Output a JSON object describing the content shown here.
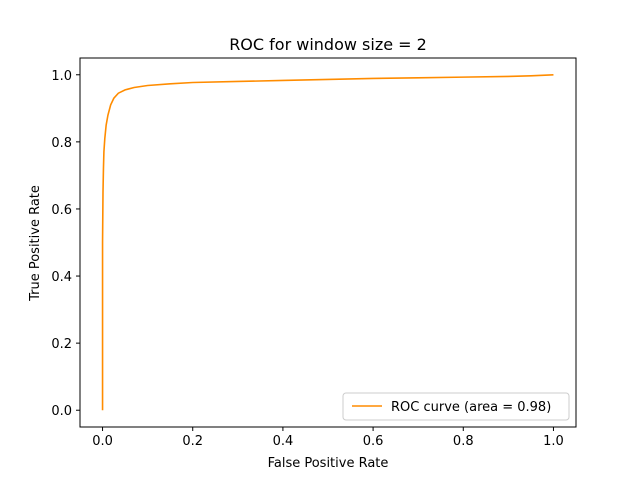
{
  "chart_data": {
    "type": "line",
    "title": "ROC for window size = 2",
    "xlabel": "False Positive Rate",
    "ylabel": "True Positive Rate",
    "xlim": [
      -0.05,
      1.05
    ],
    "ylim": [
      -0.05,
      1.05
    ],
    "xticks": [
      "0.0",
      "0.2",
      "0.4",
      "0.6",
      "0.8",
      "1.0"
    ],
    "yticks": [
      "0.0",
      "0.2",
      "0.4",
      "0.6",
      "0.8",
      "1.0"
    ],
    "grid": false,
    "legend_position": "lower-right",
    "series": [
      {
        "name": "ROC curve (area = 0.98)",
        "color": "#ff8c00",
        "x": [
          0.0,
          0.0,
          0.001,
          0.002,
          0.003,
          0.005,
          0.008,
          0.012,
          0.018,
          0.025,
          0.035,
          0.05,
          0.07,
          0.1,
          0.15,
          0.2,
          0.3,
          0.4,
          0.5,
          0.6,
          0.7,
          0.8,
          0.9,
          0.95,
          1.0
        ],
        "y": [
          0.0,
          0.5,
          0.65,
          0.72,
          0.77,
          0.81,
          0.85,
          0.88,
          0.91,
          0.93,
          0.945,
          0.955,
          0.962,
          0.968,
          0.973,
          0.977,
          0.98,
          0.983,
          0.986,
          0.989,
          0.991,
          0.993,
          0.995,
          0.997,
          1.0
        ]
      }
    ]
  }
}
